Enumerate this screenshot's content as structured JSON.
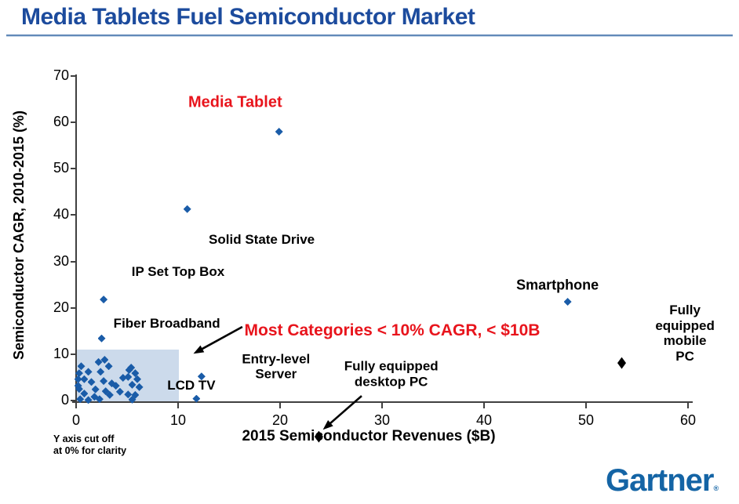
{
  "page": {
    "title": "Media Tablets Fuel Semiconductor Market"
  },
  "footnote": {
    "line1": "Y axis cut off",
    "line2": "at 0% for clarity"
  },
  "footer": {
    "logo_text": "Gartner",
    "registered_mark": "®"
  },
  "chart_data": {
    "type": "scatter",
    "title": "Media Tablets Fuel Semiconductor Market",
    "xlabel": "2015 Semiconductor Revenues ($B)",
    "ylabel": "Semiconductor CAGR, 2010-2015 (%)",
    "xlim": [
      0,
      60
    ],
    "ylim": [
      0,
      70
    ],
    "x_ticks": [
      0,
      10,
      20,
      30,
      40,
      50,
      60
    ],
    "y_ticks": [
      0,
      10,
      20,
      30,
      40,
      50,
      60,
      70
    ],
    "grid": false,
    "note": "Y axis cut off at 0% for clarity",
    "highlight_region": {
      "x0": 0,
      "x1": 10.1,
      "y0": 0,
      "y1": 11.0,
      "color": "#ccdaeb"
    },
    "series": [
      {
        "name": "blue-categories",
        "marker": "diamond",
        "color": "#1a5ca8",
        "labeled": [
          {
            "name": "Media Tablet",
            "x": 19.9,
            "y": 58.0
          },
          {
            "name": "Solid State Drive",
            "x": 10.9,
            "y": 41.3
          },
          {
            "name": "IP Set Top Box",
            "x": 2.7,
            "y": 21.8
          },
          {
            "name": "Fiber Broadband",
            "x": 2.5,
            "y": 13.4
          },
          {
            "name": "Smartphone",
            "x": 48.2,
            "y": 21.3
          },
          {
            "name": "LCD TV",
            "x": 12.3,
            "y": 5.2
          }
        ],
        "cluster": [
          [
            0.3,
            5.9
          ],
          [
            0.5,
            7.4
          ],
          [
            2.2,
            8.3
          ],
          [
            2.8,
            8.8
          ],
          [
            3.2,
            7.4
          ],
          [
            1.2,
            6.2
          ],
          [
            2.4,
            6.2
          ],
          [
            0.2,
            4.6
          ],
          [
            0.8,
            4.6
          ],
          [
            1.5,
            4.0
          ],
          [
            2.7,
            4.2
          ],
          [
            3.5,
            3.7
          ],
          [
            0.2,
            3.2
          ],
          [
            0.3,
            2.5
          ],
          [
            1.9,
            2.4
          ],
          [
            0.8,
            1.5
          ],
          [
            2.9,
            2.0
          ],
          [
            3.9,
            3.2
          ],
          [
            4.6,
            4.9
          ],
          [
            5.2,
            6.6
          ],
          [
            5.4,
            7.1
          ],
          [
            5.8,
            5.9
          ],
          [
            5.1,
            5.1
          ],
          [
            6.0,
            4.6
          ],
          [
            5.5,
            3.4
          ],
          [
            6.2,
            2.9
          ],
          [
            5.1,
            1.3
          ],
          [
            5.8,
            1.2
          ],
          [
            5.5,
            0.2
          ],
          [
            1.2,
            0.1
          ],
          [
            0.4,
            0.3
          ],
          [
            1.8,
            0.8
          ],
          [
            3.3,
            1.2
          ],
          [
            4.3,
            1.9
          ],
          [
            2.3,
            0.3
          ],
          [
            11.8,
            0.4
          ]
        ]
      },
      {
        "name": "black-categories",
        "marker": "tall-diamond",
        "color": "#000000",
        "labeled": [
          {
            "name": "Fully equipped desktop PC",
            "x": 23.8,
            "y": -7.8
          },
          {
            "name": "Fully equipped mobile PC",
            "x": 53.5,
            "y": 8.1
          }
        ]
      }
    ],
    "point_labels": [
      {
        "text": "Media Tablet",
        "x": 15.6,
        "y": 64.3,
        "color": "#e8141c",
        "size": 20,
        "align": "center"
      },
      {
        "text": "Solid State Drive",
        "x": 18.2,
        "y": 34.7,
        "color": "#000000",
        "size": 17,
        "align": "center"
      },
      {
        "text": "IP Set Top Box",
        "x": 10.0,
        "y": 27.7,
        "color": "#000000",
        "size": 17,
        "align": "center"
      },
      {
        "text": "Fiber Broadband",
        "x": 8.9,
        "y": 16.6,
        "color": "#000000",
        "size": 17,
        "align": "center"
      },
      {
        "text": "LCD TV",
        "x": 11.3,
        "y": 3.2,
        "color": "#000000",
        "size": 17,
        "align": "center"
      },
      {
        "text": "Entry-level\nServer",
        "x": 19.6,
        "y": 7.3,
        "color": "#000000",
        "size": 17,
        "align": "center"
      },
      {
        "text": "Fully equipped\ndesktop PC",
        "x": 30.9,
        "y": 5.7,
        "color": "#000000",
        "size": 17,
        "align": "center"
      },
      {
        "text": "Smartphone",
        "x": 47.2,
        "y": 24.9,
        "color": "#000000",
        "size": 18,
        "align": "center"
      },
      {
        "text": "Fully equipped\nmobile PC",
        "x": 59.7,
        "y": 14.5,
        "color": "#000000",
        "size": 17,
        "align": "center"
      },
      {
        "text": "Most Categories < 10% CAGR, < $10B",
        "x": 16.5,
        "y": 15.05,
        "color": "#e8141c",
        "size": 21,
        "align": "left"
      }
    ],
    "arrows": [
      {
        "from": {
          "x": 16.3,
          "y": 15.9
        },
        "to": {
          "x": 11.5,
          "y": 10.1
        }
      },
      {
        "from": {
          "x": 28.0,
          "y": 1.0
        },
        "to": {
          "x": 24.2,
          "y": -6.3
        }
      }
    ]
  }
}
